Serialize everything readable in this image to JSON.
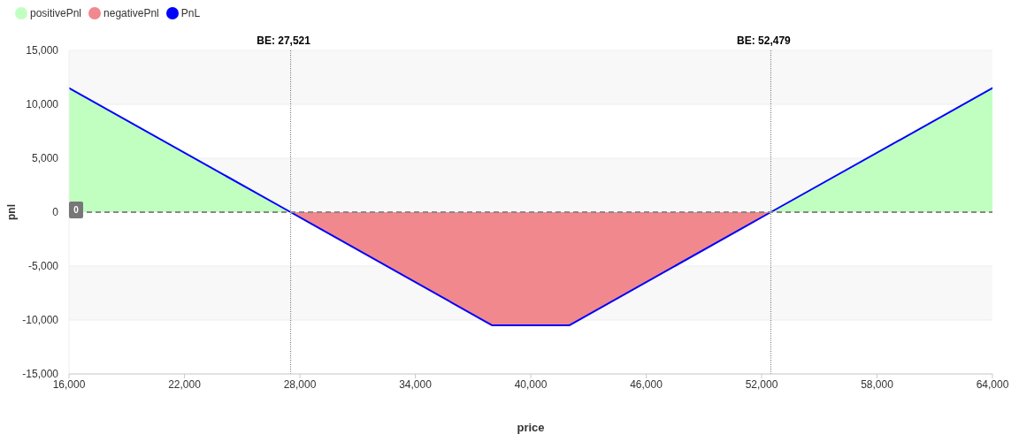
{
  "chart_data": {
    "type": "area",
    "x": [
      16000,
      27521,
      38000,
      42000,
      52479,
      64000
    ],
    "series": [
      {
        "name": "positivePnl",
        "color": "#c1ffc1",
        "values": [
          11500,
          0,
          null,
          null,
          0,
          11500
        ]
      },
      {
        "name": "negativePnl",
        "color": "#f0888e",
        "values": [
          null,
          0,
          -10500,
          -10500,
          0,
          null
        ]
      },
      {
        "name": "PnL",
        "type": "line",
        "color": "#0000ff",
        "values": [
          11500,
          0,
          -10500,
          -10500,
          0,
          11500
        ]
      }
    ],
    "xlabel": "price",
    "ylabel": "pnl",
    "xlim": [
      16000,
      64000
    ],
    "xticks": [
      {
        "value": 16000,
        "label": "16,000"
      },
      {
        "value": 22000,
        "label": "22,000"
      },
      {
        "value": 28000,
        "label": "28,000"
      },
      {
        "value": 34000,
        "label": "34,000"
      },
      {
        "value": 40000,
        "label": "40,000"
      },
      {
        "value": 46000,
        "label": "46,000"
      },
      {
        "value": 52000,
        "label": "52,000"
      },
      {
        "value": 58000,
        "label": "58,000"
      },
      {
        "value": 64000,
        "label": "64,000"
      }
    ],
    "ylim": [
      -15000,
      15000
    ],
    "yticks": [
      {
        "value": -15000,
        "label": "-15,000"
      },
      {
        "value": -10000,
        "label": "-10,000"
      },
      {
        "value": -5000,
        "label": "-5,000"
      },
      0,
      {
        "value": 5000,
        "label": "5,000"
      },
      {
        "value": 10000,
        "label": "10,000"
      },
      {
        "value": 15000,
        "label": "15,000"
      }
    ],
    "ref_lines": [
      {
        "axis": "x",
        "value": 27521,
        "label": "BE: 27,521",
        "color": "#666666",
        "line_style": "dotted"
      },
      {
        "axis": "x",
        "value": 52479,
        "label": "BE: 52,479",
        "color": "#666666",
        "line_style": "dotted"
      },
      {
        "axis": "y",
        "value": 0,
        "label": "0",
        "color": "#888888",
        "line_style": "dashed"
      }
    ],
    "grid": "y",
    "legend": "top left",
    "marker": "none",
    "line_style": "solid"
  }
}
